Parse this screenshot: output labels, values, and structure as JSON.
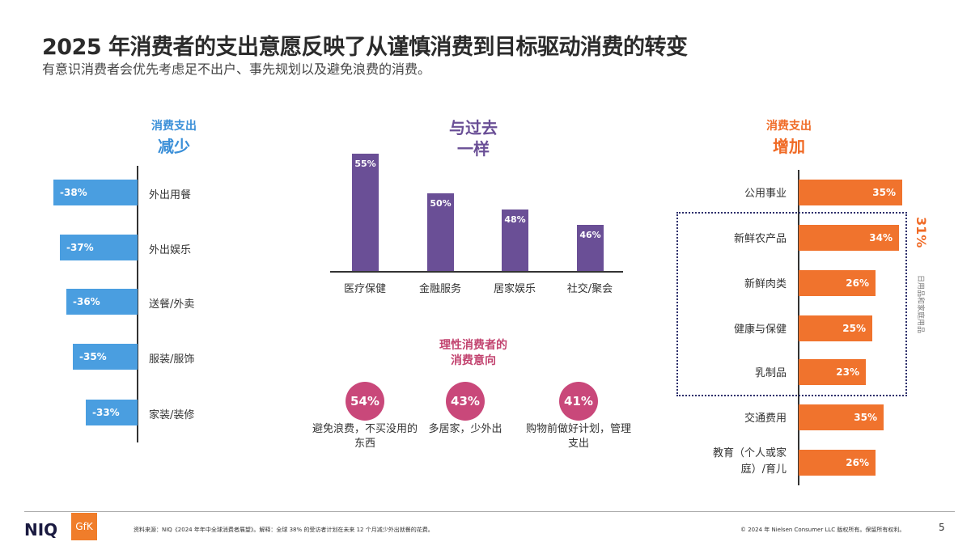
{
  "header": {
    "title": "2025 年消费者的支出意愿反映了从谨慎消费到目标驱动消费的转变",
    "subtitle": "有意识消费者会优先考虑足不出户、事先规划以及避免浪费的消费。"
  },
  "colors": {
    "decrease": "#4a9ee0",
    "same": "#6a4f96",
    "increase": "#f0732d",
    "intent": "#c9487a"
  },
  "decrease": {
    "heading1": "消费支出",
    "heading2": "减少",
    "items": [
      {
        "label": "外出用餐",
        "value": "-38%",
        "pct": 38
      },
      {
        "label": "外出娱乐",
        "value": "-37%",
        "pct": 37
      },
      {
        "label": "送餐/外卖",
        "value": "-36%",
        "pct": 36
      },
      {
        "label": "服装/服饰",
        "value": "-35%",
        "pct": 35
      },
      {
        "label": "家装/装修",
        "value": "-33%",
        "pct": 33
      }
    ]
  },
  "same": {
    "heading1": "与过去",
    "heading2": "一样",
    "items": [
      {
        "label": "医疗保健",
        "value": "55%",
        "pct": 55
      },
      {
        "label": "金融服务",
        "value": "50%",
        "pct": 50
      },
      {
        "label": "居家娱乐",
        "value": "48%",
        "pct": 48
      },
      {
        "label": "社交/聚会",
        "value": "46%",
        "pct": 46
      }
    ]
  },
  "intent": {
    "heading1": "理性消费者的",
    "heading2": "消费意向",
    "items": [
      {
        "value": "54%",
        "caption": "避免浪费，不买没用的东西"
      },
      {
        "value": "43%",
        "caption": "多居家，少外出"
      },
      {
        "value": "41%",
        "caption": "购物前做好计划，管理支出"
      }
    ]
  },
  "increase": {
    "heading1": "消费支出",
    "heading2": "增加",
    "group_value": "31%",
    "group_label": "日用品和家庭用品",
    "items": [
      {
        "label": "公用事业",
        "value": "35%",
        "pct": 35
      },
      {
        "label": "新鲜农产品",
        "value": "34%",
        "pct": 34
      },
      {
        "label": "新鲜肉类",
        "value": "26%",
        "pct": 26
      },
      {
        "label": "健康与保健",
        "value": "25%",
        "pct": 25
      },
      {
        "label": "乳制品",
        "value": "23%",
        "pct": 23
      },
      {
        "label": "交通费用",
        "value": "35%",
        "pct": 35
      },
      {
        "label": "教育（个人或家庭）/育儿",
        "value": "26%",
        "pct": 26
      }
    ]
  },
  "footer": {
    "logo1": "NIQ",
    "logo2": "GfK",
    "source": "资料来源：NIQ《2024 年年中全球消费者展望》。解释：全球 38% 的受访者计划在未来 12 个月减少外出就餐的花费。",
    "copyright": "© 2024 年 Nielsen Consumer LLC 版权所有。保留所有权利。",
    "page": "5"
  }
}
